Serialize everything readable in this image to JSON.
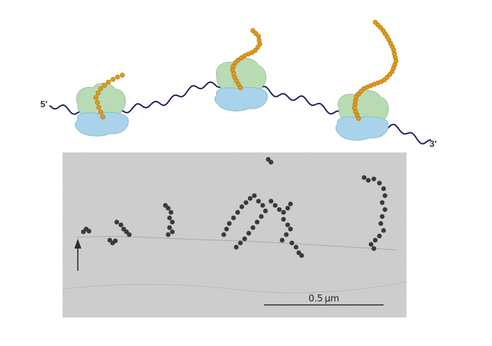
{
  "diagram": {
    "five_prime_label": "5'",
    "three_prime_label": "3'",
    "ribosome_count": 3,
    "colors": {
      "mrna": "#1a1f5c",
      "large_subunit": "#b8dbb4",
      "small_subunit": "#a9d3ea",
      "peptide_bead": "#e39a1a",
      "peptide_outline": "#b06f00"
    },
    "ribosomes": [
      {
        "name": "ribosome-1",
        "peptide_beads": 12
      },
      {
        "name": "ribosome-2",
        "peptide_beads": 20
      },
      {
        "name": "ribosome-3",
        "peptide_beads": 34
      }
    ]
  },
  "micrograph": {
    "scale_bar_label": "0.5 μm",
    "arrow_icon": "up-arrow-icon",
    "colors": {
      "background": "#cfcfcf",
      "particles": "#3a3a3a"
    }
  }
}
